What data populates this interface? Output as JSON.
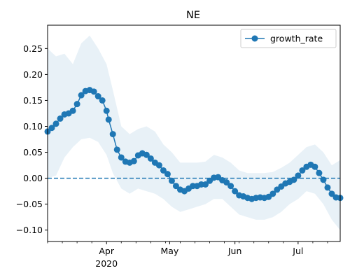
{
  "chart_data": {
    "type": "line",
    "title": "NE",
    "xlabel": "",
    "ylabel": "",
    "x_range": [
      "2020-03-04",
      "2020-07-21"
    ],
    "ylim": [
      -0.122,
      0.295
    ],
    "grid": false,
    "legend": {
      "placement": "top-right",
      "entries": [
        "growth_rate"
      ]
    },
    "x_ticks": [
      {
        "date": "2020-04-01",
        "label": "Apr",
        "sublabel": "2020"
      },
      {
        "date": "2020-05-01",
        "label": "May",
        "sublabel": ""
      },
      {
        "date": "2020-06-01",
        "label": "Jun",
        "sublabel": ""
      },
      {
        "date": "2020-07-01",
        "label": "Jul",
        "sublabel": ""
      }
    ],
    "x_minor_ticks": [
      "2020-03-04",
      "2020-03-11",
      "2020-03-18",
      "2020-03-25",
      "2020-04-08",
      "2020-04-15",
      "2020-04-22",
      "2020-04-29",
      "2020-05-06",
      "2020-05-13",
      "2020-05-20",
      "2020-05-27",
      "2020-06-03",
      "2020-06-10",
      "2020-06-17",
      "2020-06-24",
      "2020-07-08",
      "2020-07-15"
    ],
    "y_ticks": [
      {
        "value": 0.25,
        "label": "0.25"
      },
      {
        "value": 0.2,
        "label": "0.20"
      },
      {
        "value": 0.15,
        "label": "0.15"
      },
      {
        "value": 0.1,
        "label": "0.10"
      },
      {
        "value": 0.05,
        "label": "0.05"
      },
      {
        "value": 0.0,
        "label": "0.00"
      },
      {
        "value": -0.05,
        "label": "−0.05"
      },
      {
        "value": -0.1,
        "label": "−0.10"
      }
    ],
    "reference_line": {
      "y": 0.0,
      "style": "dashed"
    },
    "colors": {
      "series": "#1f77b4",
      "band": "#1f77b4"
    },
    "band_opacity": 0.1,
    "series": [
      {
        "name": "growth_rate",
        "marker": "circle",
        "points": [
          [
            "2020-03-04",
            0.09
          ],
          [
            "2020-03-06",
            0.097
          ],
          [
            "2020-03-08",
            0.105
          ],
          [
            "2020-03-10",
            0.115
          ],
          [
            "2020-03-12",
            0.123
          ],
          [
            "2020-03-14",
            0.125
          ],
          [
            "2020-03-16",
            0.13
          ],
          [
            "2020-03-18",
            0.143
          ],
          [
            "2020-03-20",
            0.16
          ],
          [
            "2020-03-22",
            0.168
          ],
          [
            "2020-03-24",
            0.17
          ],
          [
            "2020-03-26",
            0.167
          ],
          [
            "2020-03-28",
            0.158
          ],
          [
            "2020-03-30",
            0.15
          ],
          [
            "2020-04-01",
            0.13
          ],
          [
            "2020-04-02",
            0.113
          ],
          [
            "2020-04-04",
            0.085
          ],
          [
            "2020-04-06",
            0.055
          ],
          [
            "2020-04-08",
            0.04
          ],
          [
            "2020-04-10",
            0.032
          ],
          [
            "2020-04-12",
            0.03
          ],
          [
            "2020-04-14",
            0.033
          ],
          [
            "2020-04-16",
            0.044
          ],
          [
            "2020-04-18",
            0.048
          ],
          [
            "2020-04-20",
            0.045
          ],
          [
            "2020-04-22",
            0.038
          ],
          [
            "2020-04-24",
            0.03
          ],
          [
            "2020-04-26",
            0.025
          ],
          [
            "2020-04-28",
            0.015
          ],
          [
            "2020-04-30",
            0.008
          ],
          [
            "2020-05-02",
            -0.005
          ],
          [
            "2020-05-04",
            -0.015
          ],
          [
            "2020-05-06",
            -0.022
          ],
          [
            "2020-05-08",
            -0.025
          ],
          [
            "2020-05-10",
            -0.02
          ],
          [
            "2020-05-12",
            -0.015
          ],
          [
            "2020-05-14",
            -0.015
          ],
          [
            "2020-05-16",
            -0.012
          ],
          [
            "2020-05-18",
            -0.012
          ],
          [
            "2020-05-20",
            -0.005
          ],
          [
            "2020-05-22",
            0.001
          ],
          [
            "2020-05-24",
            0.002
          ],
          [
            "2020-05-26",
            -0.004
          ],
          [
            "2020-05-28",
            -0.008
          ],
          [
            "2020-05-30",
            -0.015
          ],
          [
            "2020-06-01",
            -0.025
          ],
          [
            "2020-06-03",
            -0.033
          ],
          [
            "2020-06-05",
            -0.035
          ],
          [
            "2020-06-07",
            -0.038
          ],
          [
            "2020-06-09",
            -0.04
          ],
          [
            "2020-06-11",
            -0.038
          ],
          [
            "2020-06-13",
            -0.037
          ],
          [
            "2020-06-15",
            -0.038
          ],
          [
            "2020-06-17",
            -0.036
          ],
          [
            "2020-06-19",
            -0.03
          ],
          [
            "2020-06-21",
            -0.022
          ],
          [
            "2020-06-23",
            -0.016
          ],
          [
            "2020-06-25",
            -0.01
          ],
          [
            "2020-06-27",
            -0.007
          ],
          [
            "2020-06-29",
            -0.003
          ],
          [
            "2020-07-01",
            0.005
          ],
          [
            "2020-07-03",
            0.015
          ],
          [
            "2020-07-05",
            0.022
          ],
          [
            "2020-07-07",
            0.026
          ],
          [
            "2020-07-09",
            0.022
          ],
          [
            "2020-07-11",
            0.01
          ],
          [
            "2020-07-13",
            -0.003
          ],
          [
            "2020-07-15",
            -0.018
          ],
          [
            "2020-07-17",
            -0.03
          ],
          [
            "2020-07-19",
            -0.037
          ],
          [
            "2020-07-21",
            -0.038
          ]
        ],
        "band": [
          [
            "2020-03-04",
            0.0,
            0.25
          ],
          [
            "2020-03-08",
            0.005,
            0.235
          ],
          [
            "2020-03-12",
            0.04,
            0.24
          ],
          [
            "2020-03-16",
            0.06,
            0.22
          ],
          [
            "2020-03-20",
            0.075,
            0.26
          ],
          [
            "2020-03-24",
            0.078,
            0.275
          ],
          [
            "2020-03-28",
            0.07,
            0.25
          ],
          [
            "2020-04-01",
            0.045,
            0.22
          ],
          [
            "2020-04-04",
            0.01,
            0.17
          ],
          [
            "2020-04-08",
            -0.02,
            0.1
          ],
          [
            "2020-04-12",
            -0.03,
            0.085
          ],
          [
            "2020-04-16",
            -0.02,
            0.095
          ],
          [
            "2020-04-20",
            -0.025,
            0.1
          ],
          [
            "2020-04-24",
            -0.03,
            0.09
          ],
          [
            "2020-04-28",
            -0.04,
            0.065
          ],
          [
            "2020-05-02",
            -0.055,
            0.05
          ],
          [
            "2020-05-06",
            -0.065,
            0.03
          ],
          [
            "2020-05-10",
            -0.06,
            0.03
          ],
          [
            "2020-05-14",
            -0.055,
            0.03
          ],
          [
            "2020-05-18",
            -0.05,
            0.032
          ],
          [
            "2020-05-22",
            -0.04,
            0.045
          ],
          [
            "2020-05-26",
            -0.04,
            0.04
          ],
          [
            "2020-05-30",
            -0.055,
            0.03
          ],
          [
            "2020-06-03",
            -0.07,
            0.015
          ],
          [
            "2020-06-07",
            -0.075,
            0.01
          ],
          [
            "2020-06-11",
            -0.08,
            0.01
          ],
          [
            "2020-06-15",
            -0.08,
            0.01
          ],
          [
            "2020-06-19",
            -0.075,
            0.012
          ],
          [
            "2020-06-23",
            -0.065,
            0.02
          ],
          [
            "2020-06-27",
            -0.05,
            0.03
          ],
          [
            "2020-07-01",
            -0.04,
            0.045
          ],
          [
            "2020-07-05",
            -0.025,
            0.06
          ],
          [
            "2020-07-09",
            -0.03,
            0.065
          ],
          [
            "2020-07-13",
            -0.05,
            0.05
          ],
          [
            "2020-07-17",
            -0.08,
            0.025
          ],
          [
            "2020-07-21",
            -0.1,
            0.035
          ]
        ]
      }
    ]
  }
}
